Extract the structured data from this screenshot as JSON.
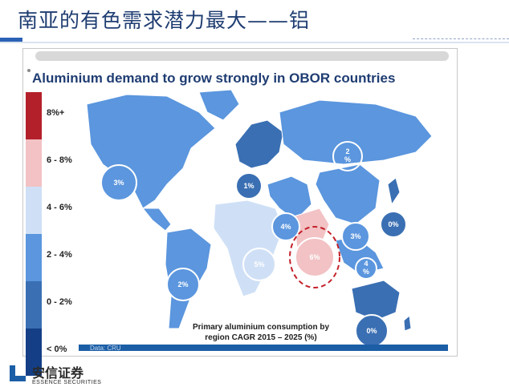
{
  "slide": {
    "title": "南亚的有色需求潜力最大——铝"
  },
  "map_panel": {
    "title": "Aluminium demand to grow strongly in OBOR countries",
    "caption_line1": "Primary aluminium consumption by",
    "caption_line2": "region CAGR  2015 – 2025 (%)",
    "data_source": "Data: CRU"
  },
  "legend": [
    {
      "label": "8%+",
      "color": "#b3202a"
    },
    {
      "label": "6 - 8%",
      "color": "#f2c2c4"
    },
    {
      "label": "4 - 6%",
      "color": "#cfe0f6"
    },
    {
      "label": "2 - 4%",
      "color": "#5b96de"
    },
    {
      "label": "0 - 2%",
      "color": "#3a6fb3"
    },
    {
      "label": "< 0%",
      "color": "#143f86"
    }
  ],
  "regions": [
    {
      "label": "3%",
      "region": "North America"
    },
    {
      "label": "1%",
      "region": "Europe"
    },
    {
      "label": "2\n%",
      "region": "Russia"
    },
    {
      "label": "4%",
      "region": "Middle East"
    },
    {
      "label": "3%",
      "region": "China"
    },
    {
      "label": "0%",
      "region": "Japan"
    },
    {
      "label": "6%",
      "region": "South Asia (India)"
    },
    {
      "label": "4\n%",
      "region": "Southeast Asia"
    },
    {
      "label": "5%",
      "region": "Africa"
    },
    {
      "label": "2%",
      "region": "South America"
    },
    {
      "label": "0%",
      "region": "Oceania"
    }
  ],
  "logo": {
    "cn": "安信证券",
    "en": "ESSENCE SECURITIES"
  },
  "colors": {
    "title_blue": "#1f3d72",
    "ocean": "#ffffff",
    "highlight_ring": "#c4202a"
  }
}
